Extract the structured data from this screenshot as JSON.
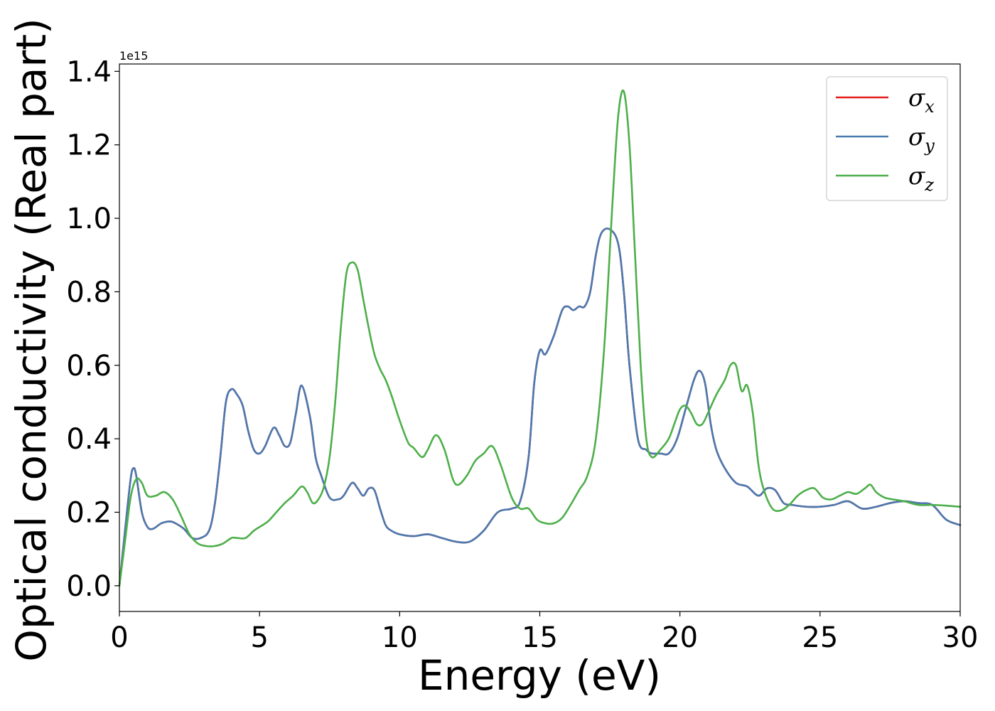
{
  "chart_data": {
    "type": "line",
    "title": "",
    "xlabel": "Energy (eV)",
    "ylabel": "Optical conductivity (Real part)",
    "y_offset_label": "1e15",
    "xlim": [
      0,
      30
    ],
    "ylim": [
      -0.07,
      1.42
    ],
    "x_ticks": [
      0,
      5,
      10,
      15,
      20,
      25,
      30
    ],
    "x_tick_labels": [
      "0",
      "5",
      "10",
      "15",
      "20",
      "25",
      "30"
    ],
    "y_ticks": [
      0.0,
      0.2,
      0.4,
      0.6,
      0.8,
      1.0,
      1.2,
      1.4
    ],
    "y_tick_labels": [
      "0.0",
      "0.2",
      "0.4",
      "0.6",
      "0.8",
      "1.0",
      "1.2",
      "1.4"
    ],
    "grid": false,
    "legend_position": "top-right",
    "series": [
      {
        "name": "σx",
        "symbol": "σ",
        "subscript": "x",
        "color": "#e41a1c",
        "x": [
          0,
          0.2,
          0.4,
          0.5,
          0.6,
          0.8,
          1.0,
          1.2,
          1.5,
          1.8,
          2.0,
          2.3,
          2.6,
          2.9,
          3.2,
          3.4,
          3.6,
          3.8,
          4.0,
          4.2,
          4.4,
          4.6,
          4.8,
          5.0,
          5.2,
          5.5,
          5.7,
          5.9,
          6.1,
          6.3,
          6.5,
          6.8,
          7.0,
          7.2,
          7.5,
          7.8,
          8.0,
          8.3,
          8.5,
          8.7,
          8.9,
          9.1,
          9.3,
          9.5,
          9.7,
          10.0,
          10.5,
          11.0,
          11.5,
          12.0,
          12.5,
          13.0,
          13.5,
          14.0,
          14.3,
          14.6,
          14.8,
          15.0,
          15.2,
          15.5,
          15.8,
          16.0,
          16.2,
          16.4,
          16.6,
          16.8,
          17.0,
          17.2,
          17.5,
          17.8,
          18.0,
          18.2,
          18.5,
          18.8,
          19.0,
          19.3,
          19.6,
          19.9,
          20.2,
          20.5,
          20.7,
          20.9,
          21.1,
          21.3,
          21.6,
          22.0,
          22.4,
          22.8,
          23.1,
          23.4,
          23.7,
          24.0,
          24.5,
          25.0,
          25.5,
          26.0,
          26.5,
          27.0,
          27.5,
          28.0,
          28.5,
          29.0,
          29.5,
          30.0
        ],
        "y": [
          0.0,
          0.15,
          0.29,
          0.32,
          0.3,
          0.2,
          0.16,
          0.155,
          0.17,
          0.175,
          0.17,
          0.155,
          0.13,
          0.13,
          0.15,
          0.22,
          0.35,
          0.5,
          0.535,
          0.52,
          0.49,
          0.42,
          0.37,
          0.36,
          0.38,
          0.43,
          0.41,
          0.38,
          0.39,
          0.47,
          0.545,
          0.46,
          0.35,
          0.3,
          0.24,
          0.235,
          0.245,
          0.28,
          0.265,
          0.245,
          0.265,
          0.26,
          0.21,
          0.165,
          0.15,
          0.14,
          0.135,
          0.14,
          0.13,
          0.12,
          0.12,
          0.15,
          0.2,
          0.21,
          0.23,
          0.35,
          0.55,
          0.64,
          0.63,
          0.68,
          0.75,
          0.76,
          0.75,
          0.76,
          0.76,
          0.8,
          0.9,
          0.96,
          0.97,
          0.93,
          0.8,
          0.6,
          0.4,
          0.37,
          0.36,
          0.36,
          0.36,
          0.4,
          0.48,
          0.56,
          0.585,
          0.55,
          0.44,
          0.37,
          0.32,
          0.28,
          0.27,
          0.245,
          0.265,
          0.26,
          0.225,
          0.22,
          0.215,
          0.215,
          0.22,
          0.23,
          0.21,
          0.215,
          0.225,
          0.23,
          0.225,
          0.22,
          0.18,
          0.165
        ]
      },
      {
        "name": "σy",
        "symbol": "σ",
        "subscript": "y",
        "color": "#4a7ab0",
        "x": [
          0,
          0.2,
          0.4,
          0.5,
          0.6,
          0.8,
          1.0,
          1.2,
          1.5,
          1.8,
          2.0,
          2.3,
          2.6,
          2.9,
          3.2,
          3.4,
          3.6,
          3.8,
          4.0,
          4.2,
          4.4,
          4.6,
          4.8,
          5.0,
          5.2,
          5.5,
          5.7,
          5.9,
          6.1,
          6.3,
          6.5,
          6.8,
          7.0,
          7.2,
          7.5,
          7.8,
          8.0,
          8.3,
          8.5,
          8.7,
          8.9,
          9.1,
          9.3,
          9.5,
          9.7,
          10.0,
          10.5,
          11.0,
          11.5,
          12.0,
          12.5,
          13.0,
          13.5,
          14.0,
          14.3,
          14.6,
          14.8,
          15.0,
          15.2,
          15.5,
          15.8,
          16.0,
          16.2,
          16.4,
          16.6,
          16.8,
          17.0,
          17.2,
          17.5,
          17.8,
          18.0,
          18.2,
          18.5,
          18.8,
          19.0,
          19.3,
          19.6,
          19.9,
          20.2,
          20.5,
          20.7,
          20.9,
          21.1,
          21.3,
          21.6,
          22.0,
          22.4,
          22.8,
          23.1,
          23.4,
          23.7,
          24.0,
          24.5,
          25.0,
          25.5,
          26.0,
          26.5,
          27.0,
          27.5,
          28.0,
          28.5,
          29.0,
          29.5,
          30.0
        ],
        "y": [
          0.0,
          0.15,
          0.29,
          0.32,
          0.3,
          0.2,
          0.16,
          0.155,
          0.17,
          0.175,
          0.17,
          0.155,
          0.13,
          0.13,
          0.15,
          0.22,
          0.35,
          0.5,
          0.535,
          0.52,
          0.49,
          0.42,
          0.37,
          0.36,
          0.38,
          0.43,
          0.41,
          0.38,
          0.39,
          0.47,
          0.545,
          0.46,
          0.35,
          0.3,
          0.24,
          0.235,
          0.245,
          0.28,
          0.265,
          0.245,
          0.265,
          0.26,
          0.21,
          0.165,
          0.15,
          0.14,
          0.135,
          0.14,
          0.13,
          0.12,
          0.12,
          0.15,
          0.2,
          0.21,
          0.23,
          0.35,
          0.55,
          0.64,
          0.63,
          0.68,
          0.75,
          0.76,
          0.75,
          0.76,
          0.76,
          0.8,
          0.9,
          0.96,
          0.97,
          0.93,
          0.8,
          0.6,
          0.4,
          0.37,
          0.36,
          0.36,
          0.36,
          0.4,
          0.48,
          0.56,
          0.585,
          0.55,
          0.44,
          0.37,
          0.32,
          0.28,
          0.27,
          0.245,
          0.265,
          0.26,
          0.225,
          0.22,
          0.215,
          0.215,
          0.22,
          0.23,
          0.21,
          0.215,
          0.225,
          0.23,
          0.225,
          0.22,
          0.18,
          0.165
        ]
      },
      {
        "name": "σz",
        "symbol": "σ",
        "subscript": "z",
        "color": "#4daf4a",
        "x": [
          0,
          0.2,
          0.4,
          0.6,
          0.8,
          1.0,
          1.3,
          1.6,
          1.9,
          2.2,
          2.5,
          2.8,
          3.1,
          3.4,
          3.7,
          4.0,
          4.2,
          4.5,
          4.8,
          5.0,
          5.3,
          5.6,
          5.9,
          6.2,
          6.5,
          6.7,
          6.9,
          7.1,
          7.3,
          7.5,
          7.7,
          7.9,
          8.1,
          8.3,
          8.5,
          8.7,
          8.9,
          9.1,
          9.3,
          9.5,
          9.7,
          10.0,
          10.3,
          10.5,
          10.8,
          11.0,
          11.3,
          11.6,
          11.9,
          12.1,
          12.4,
          12.7,
          13.0,
          13.3,
          13.6,
          14.0,
          14.3,
          14.6,
          14.9,
          15.2,
          15.5,
          15.8,
          16.1,
          16.4,
          16.7,
          17.0,
          17.3,
          17.6,
          17.8,
          18.0,
          18.2,
          18.4,
          18.6,
          18.8,
          19.0,
          19.3,
          19.6,
          19.8,
          20.0,
          20.2,
          20.4,
          20.6,
          20.8,
          21.0,
          21.3,
          21.6,
          21.8,
          22.0,
          22.2,
          22.4,
          22.6,
          22.8,
          23.0,
          23.3,
          23.6,
          23.9,
          24.2,
          24.5,
          24.8,
          25.1,
          25.4,
          25.7,
          26.0,
          26.3,
          26.6,
          26.8,
          27.0,
          27.3,
          27.6,
          28.0,
          28.5,
          29.0,
          29.5,
          30.0
        ],
        "y": [
          0.0,
          0.12,
          0.24,
          0.29,
          0.28,
          0.245,
          0.245,
          0.255,
          0.235,
          0.19,
          0.14,
          0.115,
          0.108,
          0.108,
          0.115,
          0.13,
          0.13,
          0.13,
          0.15,
          0.16,
          0.175,
          0.2,
          0.225,
          0.245,
          0.27,
          0.255,
          0.225,
          0.235,
          0.27,
          0.35,
          0.5,
          0.7,
          0.85,
          0.88,
          0.86,
          0.78,
          0.7,
          0.63,
          0.59,
          0.56,
          0.52,
          0.45,
          0.39,
          0.375,
          0.35,
          0.37,
          0.41,
          0.37,
          0.29,
          0.275,
          0.3,
          0.34,
          0.36,
          0.38,
          0.33,
          0.24,
          0.21,
          0.21,
          0.18,
          0.17,
          0.17,
          0.185,
          0.22,
          0.26,
          0.3,
          0.4,
          0.65,
          1.05,
          1.28,
          1.345,
          1.2,
          0.9,
          0.6,
          0.4,
          0.35,
          0.37,
          0.4,
          0.44,
          0.48,
          0.49,
          0.47,
          0.44,
          0.44,
          0.47,
          0.52,
          0.56,
          0.6,
          0.6,
          0.53,
          0.545,
          0.47,
          0.33,
          0.26,
          0.21,
          0.205,
          0.22,
          0.245,
          0.26,
          0.265,
          0.24,
          0.235,
          0.245,
          0.255,
          0.25,
          0.265,
          0.275,
          0.255,
          0.24,
          0.235,
          0.23,
          0.22,
          0.22,
          0.218,
          0.215
        ]
      }
    ]
  }
}
